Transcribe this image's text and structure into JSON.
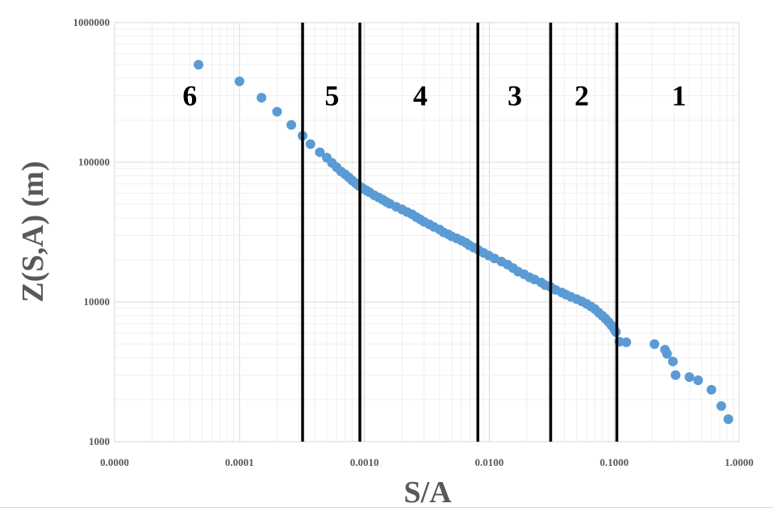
{
  "chart_data": {
    "type": "scatter",
    "title": "",
    "xlabel": "S/A",
    "ylabel": "Z(S,A) (m)",
    "x_scale": "log",
    "y_scale": "log",
    "xlim": [
      1e-05,
      1
    ],
    "ylim": [
      1000,
      1000000
    ],
    "grid": true,
    "x_ticks": [
      {
        "value": 1e-05,
        "label": "0.0000"
      },
      {
        "value": 0.0001,
        "label": "0.0001"
      },
      {
        "value": 0.001,
        "label": "0.0010"
      },
      {
        "value": 0.01,
        "label": "0.0100"
      },
      {
        "value": 0.1,
        "label": "0.1000"
      },
      {
        "value": 1,
        "label": "1.0000"
      }
    ],
    "y_ticks": [
      {
        "value": 1000,
        "label": "1000"
      },
      {
        "value": 10000,
        "label": "10000"
      },
      {
        "value": 100000,
        "label": "100000"
      },
      {
        "value": 1000000,
        "label": "1000000"
      }
    ],
    "marker_color": "#5b9bd5",
    "boundary_color": "#000000",
    "boundaries": [
      0.00032,
      0.00092,
      0.0081,
      0.031,
      0.105
    ],
    "regions": [
      {
        "label": "6",
        "x": 4e-05,
        "y": 300000
      },
      {
        "label": "5",
        "x": 0.00055,
        "y": 300000
      },
      {
        "label": "4",
        "x": 0.0028,
        "y": 300000
      },
      {
        "label": "3",
        "x": 0.016,
        "y": 300000
      },
      {
        "label": "2",
        "x": 0.055,
        "y": 300000
      },
      {
        "label": "1",
        "x": 0.33,
        "y": 300000
      }
    ],
    "series": [
      {
        "points": [
          [
            4.7e-05,
            500000
          ],
          [
            0.0001,
            380000
          ],
          [
            0.00015,
            290000
          ],
          [
            0.0002,
            230000
          ],
          [
            0.00026,
            185000
          ],
          [
            0.00032,
            155000
          ],
          [
            0.00037,
            135000
          ],
          [
            0.00044,
            118000
          ],
          [
            0.0005,
            108000
          ],
          [
            0.00055,
            99000
          ],
          [
            0.0006,
            92000
          ],
          [
            0.00065,
            86000
          ],
          [
            0.0007,
            82000
          ],
          [
            0.00075,
            78000
          ],
          [
            0.0008,
            74000
          ],
          [
            0.00085,
            71000
          ],
          [
            0.0009,
            68000
          ],
          [
            0.00095,
            66000
          ],
          [
            0.001,
            64000
          ],
          [
            0.00105,
            62500
          ],
          [
            0.0011,
            61000
          ],
          [
            0.0012,
            58000
          ],
          [
            0.0013,
            56000
          ],
          [
            0.0014,
            54000
          ],
          [
            0.0015,
            52000
          ],
          [
            0.0016,
            50500
          ],
          [
            0.0018,
            48000
          ],
          [
            0.002,
            46000
          ],
          [
            0.0022,
            44000
          ],
          [
            0.0024,
            42500
          ],
          [
            0.0026,
            40500
          ],
          [
            0.0028,
            39000
          ],
          [
            0.003,
            37500
          ],
          [
            0.0033,
            36000
          ],
          [
            0.0036,
            34500
          ],
          [
            0.004,
            33000
          ],
          [
            0.0043,
            31500
          ],
          [
            0.0047,
            30500
          ],
          [
            0.005,
            29500
          ],
          [
            0.0055,
            28500
          ],
          [
            0.006,
            27500
          ],
          [
            0.0065,
            26500
          ],
          [
            0.0069,
            25500
          ],
          [
            0.0075,
            24500
          ],
          [
            0.0082,
            23500
          ],
          [
            0.009,
            22500
          ],
          [
            0.0099,
            21500
          ],
          [
            0.011,
            20500
          ],
          [
            0.0125,
            19500
          ],
          [
            0.014,
            18500
          ],
          [
            0.0155,
            17500
          ],
          [
            0.017,
            16500
          ],
          [
            0.019,
            15800
          ],
          [
            0.021,
            15000
          ],
          [
            0.023,
            14500
          ],
          [
            0.026,
            13800
          ],
          [
            0.028,
            13200
          ],
          [
            0.031,
            12800
          ],
          [
            0.034,
            12200
          ],
          [
            0.038,
            11700
          ],
          [
            0.041,
            11300
          ],
          [
            0.045,
            10900
          ],
          [
            0.05,
            10500
          ],
          [
            0.055,
            10100
          ],
          [
            0.06,
            9700
          ],
          [
            0.065,
            9300
          ],
          [
            0.07,
            8900
          ],
          [
            0.075,
            8400
          ],
          [
            0.08,
            8000
          ],
          [
            0.085,
            7600
          ],
          [
            0.09,
            7200
          ],
          [
            0.095,
            6800
          ],
          [
            0.1,
            6400
          ],
          [
            0.103,
            6100
          ],
          [
            0.11,
            5200
          ],
          [
            0.125,
            5150
          ],
          [
            0.21,
            5000
          ],
          [
            0.255,
            4550
          ],
          [
            0.265,
            4250
          ],
          [
            0.295,
            3750
          ],
          [
            0.31,
            3000
          ],
          [
            0.4,
            2900
          ],
          [
            0.47,
            2750
          ],
          [
            0.6,
            2350
          ],
          [
            0.72,
            1800
          ],
          [
            0.82,
            1450
          ]
        ]
      }
    ]
  }
}
